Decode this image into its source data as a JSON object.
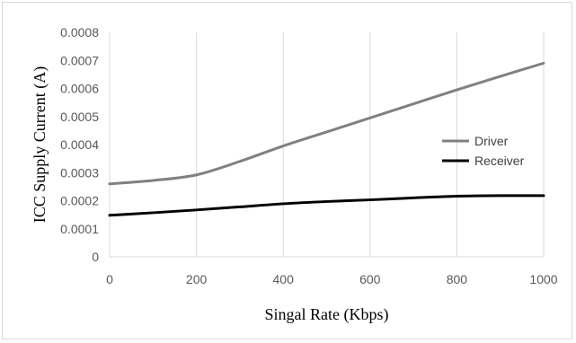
{
  "chart_data": {
    "type": "line",
    "xlabel": "Singal Rate (Kbps)",
    "ylabel": "ICC Supply Current (A)",
    "xlim": [
      0,
      1000
    ],
    "ylim": [
      0,
      0.0008
    ],
    "x_ticks": [
      "0",
      "200",
      "400",
      "600",
      "800",
      "1000"
    ],
    "y_ticks": [
      "0",
      "0.0001",
      "0.0002",
      "0.0003",
      "0.0004",
      "0.0005",
      "0.0006",
      "0.0007",
      "0.0008"
    ],
    "grid": "vertical",
    "legend_position": "right",
    "series": [
      {
        "name": "Driver",
        "color": "#808080",
        "x": [
          0,
          100,
          200,
          300,
          400,
          500,
          600,
          700,
          800,
          900,
          1000
        ],
        "y": [
          0.00026,
          0.000272,
          0.000292,
          0.00034,
          0.000395,
          0.000445,
          0.000495,
          0.000545,
          0.000595,
          0.000643,
          0.00069
        ]
      },
      {
        "name": "Receiver",
        "color": "#000000",
        "x": [
          0,
          100,
          200,
          300,
          400,
          500,
          600,
          700,
          800,
          900,
          1000
        ],
        "y": [
          0.000148,
          0.000157,
          0.000167,
          0.000178,
          0.000189,
          0.000197,
          0.000203,
          0.00021,
          0.000216,
          0.000218,
          0.000218
        ]
      }
    ]
  }
}
